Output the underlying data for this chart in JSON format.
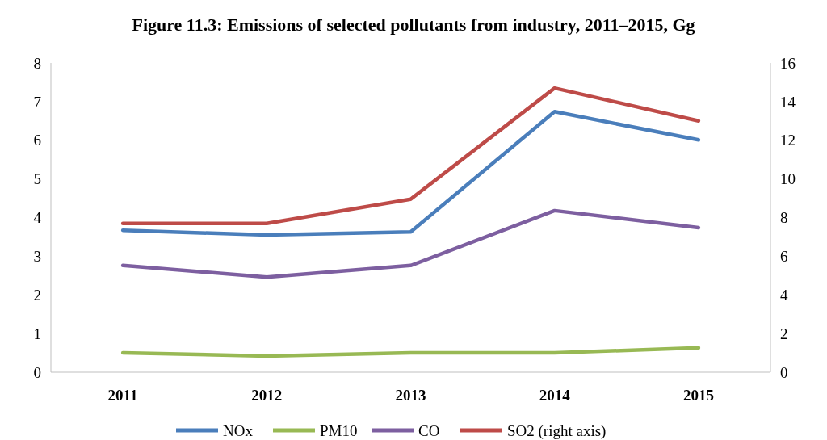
{
  "chart_data": {
    "type": "line",
    "title": "Figure 11.3: Emissions of selected pollutants from industry, 2011–2015, Gg",
    "categories": [
      "2011",
      "2012",
      "2013",
      "2014",
      "2015"
    ],
    "series": [
      {
        "name": "NOx",
        "color": "#4a7ebb",
        "values": [
          3.67,
          3.55,
          3.63,
          6.74,
          6.01
        ]
      },
      {
        "name": "PM10",
        "color": "#98b954",
        "values": [
          0.5,
          0.42,
          0.5,
          0.5,
          0.63
        ]
      },
      {
        "name": "CO",
        "color": "#7d5fa0",
        "values": [
          2.76,
          2.46,
          2.76,
          4.18,
          3.74
        ]
      },
      {
        "name": "SO2 (right axis)",
        "color": "#be4b48",
        "values": [
          7.7,
          7.7,
          8.95,
          14.7,
          13.0
        ],
        "axis": "y2"
      }
    ],
    "ylim": [
      0,
      8
    ],
    "yticks": [
      0,
      1,
      2,
      3,
      4,
      5,
      6,
      7,
      8
    ],
    "y2lim": [
      0,
      16
    ],
    "y2ticks": [
      0,
      2,
      4,
      6,
      8,
      10,
      12,
      14,
      16
    ],
    "grid": false,
    "legend": "bottom",
    "marker": "none"
  }
}
